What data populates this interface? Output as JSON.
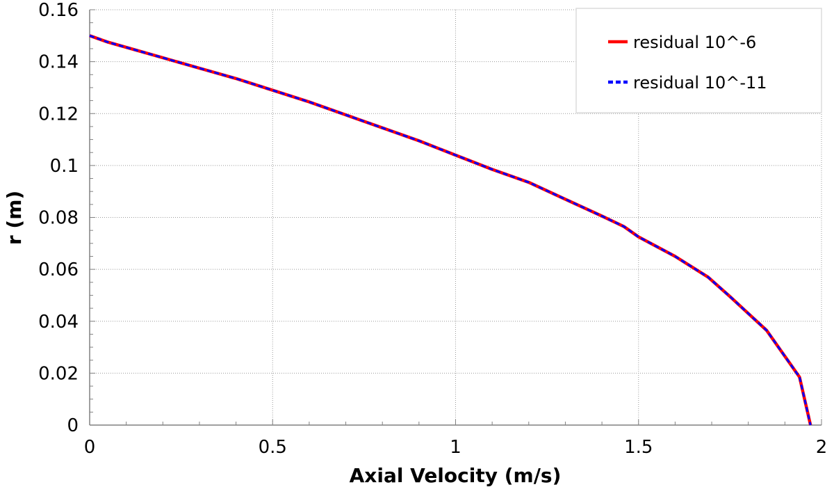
{
  "chart_data": {
    "type": "line",
    "xlabel": "Axial Velocity (m/s)",
    "ylabel": "r (m)",
    "xlim": [
      0,
      2
    ],
    "ylim": [
      0,
      0.16
    ],
    "x_ticks": [
      "0",
      "0.5",
      "1",
      "1.5",
      "2"
    ],
    "y_ticks": [
      "0",
      "0.02",
      "0.04",
      "0.06",
      "0.08",
      "0.1",
      "0.12",
      "0.14",
      "0.16"
    ],
    "grid": true,
    "legend_position": "top-right",
    "series": [
      {
        "name": "residual 10^-6",
        "color": "#ff0000",
        "style": "solid",
        "x": [
          0.0,
          0.05,
          0.1,
          0.2,
          0.3,
          0.4,
          0.5,
          0.6,
          0.7,
          0.8,
          0.9,
          1.0,
          1.1,
          1.2,
          1.3,
          1.4,
          1.46,
          1.5,
          1.6,
          1.69,
          1.75,
          1.8,
          1.85,
          1.9,
          1.94,
          1.97
        ],
        "y": [
          0.15,
          0.1475,
          0.1455,
          0.1415,
          0.1375,
          0.1335,
          0.129,
          0.1245,
          0.1195,
          0.1145,
          0.1095,
          0.104,
          0.0985,
          0.0935,
          0.087,
          0.0805,
          0.0765,
          0.0725,
          0.065,
          0.057,
          0.0495,
          0.043,
          0.0365,
          0.0265,
          0.0185,
          0.0
        ]
      },
      {
        "name": "residual 10^-11",
        "color": "#0000ff",
        "style": "dashed",
        "x": [
          0.0,
          0.05,
          0.1,
          0.2,
          0.3,
          0.4,
          0.5,
          0.6,
          0.7,
          0.8,
          0.9,
          1.0,
          1.1,
          1.2,
          1.3,
          1.4,
          1.46,
          1.5,
          1.6,
          1.69,
          1.75,
          1.8,
          1.85,
          1.9,
          1.94,
          1.97
        ],
        "y": [
          0.15,
          0.1475,
          0.1455,
          0.1415,
          0.1375,
          0.1335,
          0.129,
          0.1245,
          0.1195,
          0.1145,
          0.1095,
          0.104,
          0.0985,
          0.0935,
          0.087,
          0.0805,
          0.0765,
          0.0725,
          0.065,
          0.057,
          0.0495,
          0.043,
          0.0365,
          0.0265,
          0.0185,
          0.0
        ]
      }
    ]
  }
}
